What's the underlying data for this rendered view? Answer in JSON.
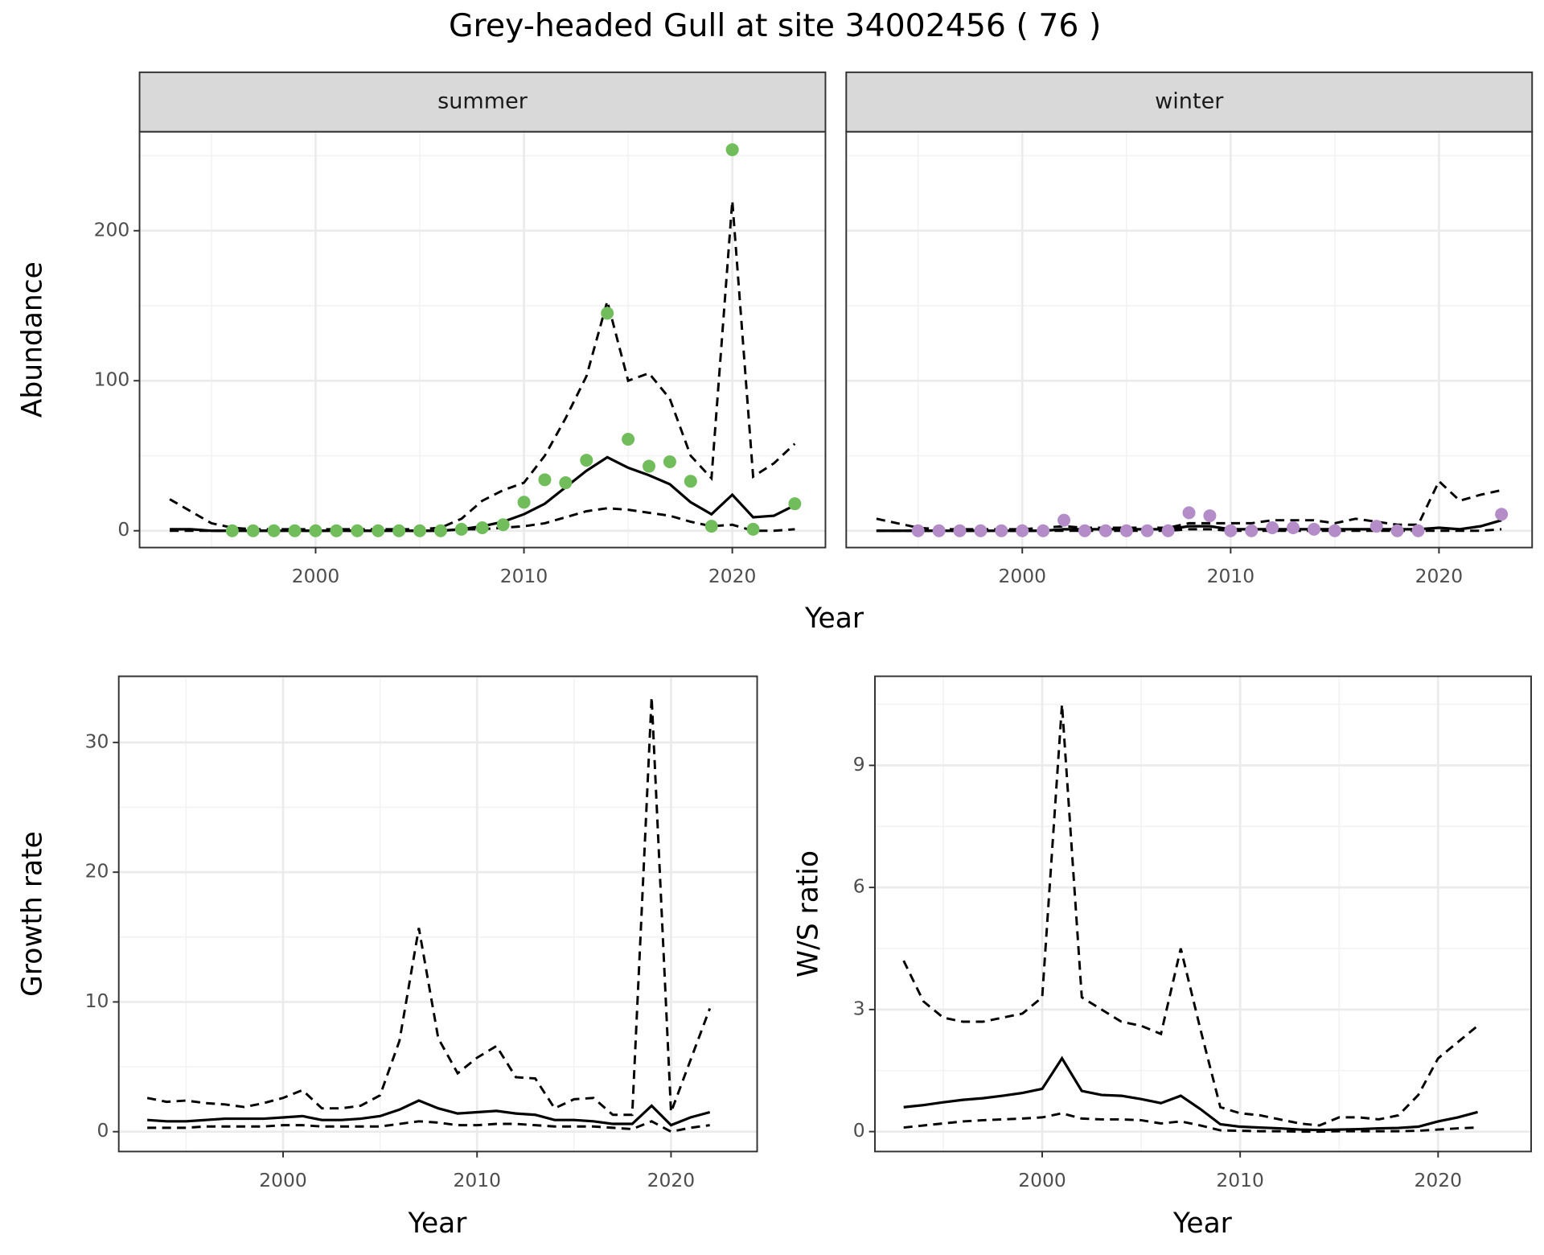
{
  "title": "Grey-headed Gull at site 34002456 ( 76 )",
  "chart_data": [
    {
      "type": "line",
      "facet": "summer",
      "ylabel": "Abundance",
      "xlabel": "Year",
      "x": [
        1993,
        1994,
        1995,
        1996,
        1997,
        1998,
        1999,
        2000,
        2001,
        2002,
        2003,
        2004,
        2005,
        2006,
        2007,
        2008,
        2009,
        2010,
        2011,
        2012,
        2013,
        2014,
        2015,
        2016,
        2017,
        2018,
        2019,
        2020,
        2021,
        2022,
        2023
      ],
      "xlim": [
        1991.55,
        2024.47
      ],
      "xticks": [
        2000,
        2010,
        2020
      ],
      "ylim": [
        -11.2,
        266
      ],
      "yticks": [
        0,
        100,
        200
      ],
      "grid": true,
      "series": [
        {
          "line": "solid",
          "color": "#000000",
          "values": [
            1,
            1,
            0,
            0,
            0,
            0,
            0,
            0,
            0,
            0,
            0,
            0,
            0,
            0,
            1,
            3,
            6,
            11,
            18,
            29,
            40,
            49,
            42,
            37,
            31,
            19,
            11,
            24,
            9,
            10,
            17
          ]
        },
        {
          "line": "dashed",
          "color": "#000000",
          "values": [
            0,
            0,
            0,
            0,
            0,
            0,
            0,
            0,
            0,
            0,
            0,
            0,
            0,
            0,
            1,
            1,
            2,
            3,
            5,
            9,
            13,
            15,
            14,
            12,
            10,
            6,
            3,
            4,
            0,
            0,
            1
          ]
        },
        {
          "line": "dashed",
          "color": "#000000",
          "values": [
            21,
            13,
            5,
            2,
            1,
            1,
            1,
            1,
            1,
            1,
            1,
            1,
            1,
            2,
            8,
            20,
            27,
            32,
            50,
            75,
            103,
            153,
            100,
            105,
            88,
            50,
            35,
            220,
            36,
            45,
            58
          ]
        },
        {
          "marker": "point",
          "color": "#71bd5c",
          "values": [
            null,
            null,
            null,
            0,
            0,
            0,
            0,
            0,
            0,
            0,
            0,
            0,
            0,
            0,
            1,
            2,
            4,
            19,
            34,
            32,
            47,
            145,
            61,
            43,
            46,
            33,
            3,
            254,
            1,
            null,
            18
          ]
        }
      ]
    },
    {
      "type": "line",
      "facet": "winter",
      "x": [
        1993,
        1994,
        1995,
        1996,
        1997,
        1998,
        1999,
        2000,
        2001,
        2002,
        2003,
        2004,
        2005,
        2006,
        2007,
        2008,
        2009,
        2010,
        2011,
        2012,
        2013,
        2014,
        2015,
        2016,
        2017,
        2018,
        2019,
        2020,
        2021,
        2022,
        2023
      ],
      "xlim": [
        1991.55,
        2024.47
      ],
      "xticks": [
        2000,
        2010,
        2020
      ],
      "ylim": [
        -11.2,
        266
      ],
      "yticks": [
        0,
        100,
        200
      ],
      "grid": true,
      "series": [
        {
          "line": "solid",
          "color": "#000000",
          "values": [
            0,
            0,
            0,
            0,
            0,
            0,
            0,
            0,
            0,
            1,
            1,
            1,
            1,
            1,
            1,
            3,
            3,
            1,
            1,
            1,
            1,
            1,
            1,
            1,
            1,
            1,
            1,
            2,
            1,
            3,
            7
          ]
        },
        {
          "line": "dashed",
          "color": "#000000",
          "values": [
            0,
            0,
            0,
            0,
            0,
            0,
            0,
            0,
            0,
            0,
            0,
            0,
            0,
            0,
            0,
            1,
            1,
            0,
            0,
            0,
            0,
            0,
            0,
            0,
            0,
            0,
            0,
            0,
            0,
            0,
            1
          ]
        },
        {
          "line": "dashed",
          "color": "#000000",
          "values": [
            8,
            5,
            2,
            1,
            1,
            1,
            1,
            1,
            2,
            3,
            2,
            2,
            2,
            2,
            2,
            5,
            5,
            5,
            5,
            7,
            7,
            7,
            5,
            8,
            6,
            4,
            4,
            33,
            20,
            24,
            27
          ]
        },
        {
          "marker": "point",
          "color": "#b48cc8",
          "values": [
            null,
            null,
            0,
            0,
            0,
            0,
            0,
            0,
            0,
            7,
            0,
            0,
            0,
            0,
            0,
            12,
            10,
            0,
            0,
            2,
            2,
            1,
            0,
            null,
            3,
            0,
            0,
            null,
            null,
            null,
            11
          ]
        }
      ]
    },
    {
      "type": "line",
      "ylabel": "Growth rate",
      "xlabel": "Year",
      "x": [
        1993,
        1994,
        1995,
        1996,
        1997,
        1998,
        1999,
        2000,
        2001,
        2002,
        2003,
        2004,
        2005,
        2006,
        2007,
        2008,
        2009,
        2010,
        2011,
        2012,
        2013,
        2014,
        2015,
        2016,
        2017,
        2018,
        2019,
        2020,
        2021,
        2022
      ],
      "xlim": [
        1991.53,
        2024.44
      ],
      "xticks": [
        2000,
        2010,
        2020
      ],
      "ylim": [
        -1.53,
        35.1
      ],
      "yticks": [
        0,
        10,
        20,
        30
      ],
      "grid": true,
      "series": [
        {
          "line": "solid",
          "color": "#000000",
          "values": [
            0.9,
            0.8,
            0.8,
            0.9,
            1.0,
            1.0,
            1.0,
            1.1,
            1.2,
            0.9,
            0.9,
            1.0,
            1.2,
            1.7,
            2.4,
            1.8,
            1.4,
            1.5,
            1.6,
            1.4,
            1.3,
            0.9,
            0.9,
            0.8,
            0.6,
            0.6,
            2.0,
            0.5,
            1.1,
            1.5
          ]
        },
        {
          "line": "dashed",
          "color": "#000000",
          "values": [
            0.3,
            0.3,
            0.3,
            0.4,
            0.4,
            0.4,
            0.4,
            0.5,
            0.5,
            0.4,
            0.4,
            0.4,
            0.4,
            0.6,
            0.8,
            0.7,
            0.5,
            0.5,
            0.6,
            0.6,
            0.5,
            0.4,
            0.4,
            0.4,
            0.3,
            0.2,
            0.8,
            0.0,
            0.3,
            0.5
          ]
        },
        {
          "line": "dashed",
          "color": "#000000",
          "values": [
            2.6,
            2.3,
            2.4,
            2.2,
            2.1,
            1.9,
            2.2,
            2.6,
            3.2,
            1.8,
            1.8,
            2.0,
            2.8,
            7.0,
            15.7,
            7.2,
            4.5,
            5.7,
            6.6,
            4.2,
            4.1,
            1.8,
            2.5,
            2.6,
            1.3,
            1.3,
            33.5,
            1.5,
            5.5,
            9.5
          ]
        }
      ]
    },
    {
      "type": "line",
      "ylabel": "W/S ratio",
      "xlabel": "Year",
      "x": [
        1993,
        1994,
        1995,
        1996,
        1997,
        1998,
        1999,
        2000,
        2001,
        2002,
        2003,
        2004,
        2005,
        2006,
        2007,
        2008,
        2009,
        2010,
        2011,
        2012,
        2013,
        2014,
        2015,
        2016,
        2017,
        2018,
        2019,
        2020,
        2021,
        2022
      ],
      "xlim": [
        1991.55,
        2024.7
      ],
      "xticks": [
        2000,
        2010,
        2020
      ],
      "ylim": [
        -0.49,
        11.19
      ],
      "yticks": [
        0,
        3,
        6,
        9
      ],
      "grid": true,
      "series": [
        {
          "line": "solid",
          "color": "#000000",
          "values": [
            0.6,
            0.65,
            0.72,
            0.78,
            0.82,
            0.88,
            0.95,
            1.05,
            1.8,
            1.0,
            0.9,
            0.88,
            0.8,
            0.7,
            0.88,
            0.55,
            0.18,
            0.12,
            0.1,
            0.08,
            0.05,
            0.04,
            0.05,
            0.06,
            0.08,
            0.09,
            0.12,
            0.25,
            0.35,
            0.48
          ]
        },
        {
          "line": "dashed",
          "color": "#000000",
          "values": [
            0.1,
            0.15,
            0.2,
            0.25,
            0.28,
            0.3,
            0.32,
            0.35,
            0.45,
            0.32,
            0.3,
            0.3,
            0.28,
            0.2,
            0.25,
            0.15,
            0.03,
            0.02,
            0.01,
            0.01,
            0,
            0,
            0.01,
            0.01,
            0.01,
            0.01,
            0.02,
            0.05,
            0.08,
            0.1
          ]
        },
        {
          "line": "dashed",
          "color": "#000000",
          "values": [
            4.2,
            3.2,
            2.8,
            2.7,
            2.7,
            2.8,
            2.9,
            3.3,
            10.5,
            3.3,
            3.0,
            2.7,
            2.6,
            2.4,
            4.5,
            2.5,
            0.6,
            0.45,
            0.4,
            0.3,
            0.2,
            0.15,
            0.35,
            0.35,
            0.3,
            0.4,
            0.9,
            1.8,
            2.2,
            2.6
          ]
        }
      ]
    }
  ]
}
